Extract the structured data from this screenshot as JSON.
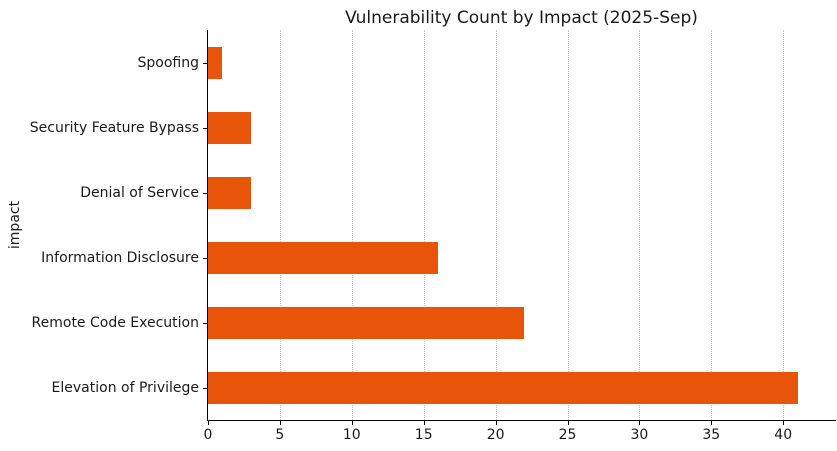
{
  "chart_data": {
    "type": "bar",
    "orientation": "horizontal",
    "title": "Vulnerability Count by Impact (2025-Sep)",
    "xlabel": "",
    "ylabel": "impact",
    "categories": [
      "Spoofing",
      "Security Feature Bypass",
      "Denial of Service",
      "Information Disclosure",
      "Remote Code Execution",
      "Elevation of Privilege"
    ],
    "values": [
      1,
      3,
      3,
      16,
      22,
      41
    ],
    "xticks": [
      0,
      5,
      10,
      15,
      20,
      25,
      30,
      35,
      40
    ],
    "xlim": [
      0,
      43.6
    ],
    "grid": "vertical-dotted",
    "legend": "none",
    "colors": {
      "bar": "#e8550a",
      "gridline": "#c9c9c9",
      "spine": "#000000",
      "text": "#1a1a1a",
      "background": "#ffffff"
    }
  }
}
